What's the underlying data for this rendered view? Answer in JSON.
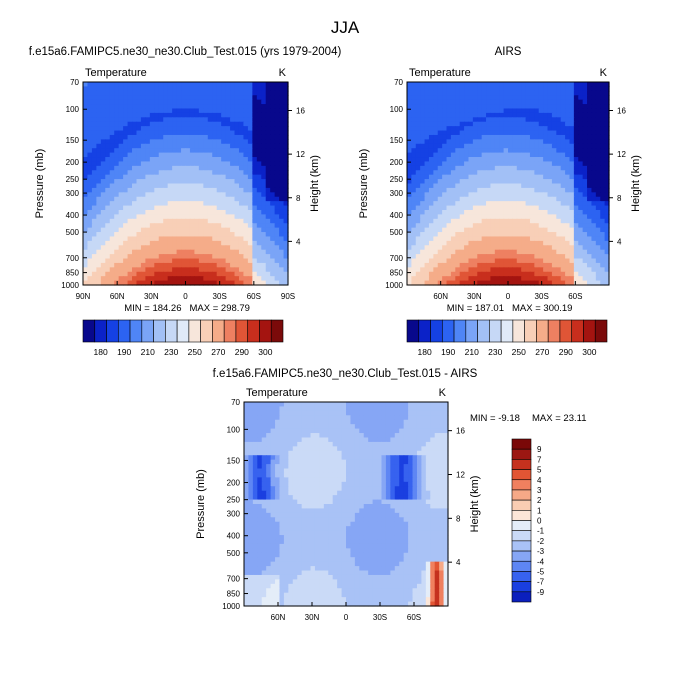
{
  "figure_title": "JJA",
  "colors": {
    "abs_scale": [
      "#08088c",
      "#0b22c8",
      "#1541e4",
      "#2c63f2",
      "#4f85f6",
      "#7aa4f7",
      "#a2c0f6",
      "#c6d8f6",
      "#e0eaf8",
      "#f7e6db",
      "#f8cfb7",
      "#f5ac89",
      "#ee8061",
      "#e05536",
      "#c82e1d",
      "#a41410",
      "#7b0a0a"
    ],
    "diff_scale": [
      "#08088c",
      "#0b1fbd",
      "#1a3fe0",
      "#3762ef",
      "#5e86f4",
      "#86a6f5",
      "#a9c2f6",
      "#cadaf7",
      "#e4edf8",
      "#fbe6d8",
      "#f9cdb3",
      "#f6a987",
      "#f0805f",
      "#e25534",
      "#c5311e",
      "#9c1712",
      "#7a0808"
    ]
  },
  "chart_data": [
    {
      "type": "contour",
      "title": "f.e15a6.FAMIPC5.ne30_ne30.Club_Test.015 (yrs 1979-2004)",
      "variable": "Temperature",
      "units": "K",
      "ylabel": "Pressure (mb)",
      "y2label": "Height (km)",
      "x_ticks": [
        "90N",
        "60N",
        "30N",
        "0",
        "30S",
        "60S",
        "90S"
      ],
      "x_range": [
        90,
        -90
      ],
      "y_ticks": [
        "70",
        "100",
        "150",
        "200",
        "250",
        "300",
        "400",
        "500",
        "700",
        "850",
        "1000"
      ],
      "y_range": [
        70,
        1000
      ],
      "height_ticks": [
        "16",
        "12",
        "8",
        "4"
      ],
      "min_label": "MIN = 184.26",
      "max_label": "MAX = 298.79",
      "min": 184.26,
      "max": 298.79,
      "color_levels": [
        "180",
        "190",
        "210",
        "230",
        "250",
        "270",
        "290",
        "300"
      ]
    },
    {
      "type": "contour",
      "title": "AIRS",
      "variable": "Temperature",
      "units": "K",
      "ylabel": "Pressure (mb)",
      "y2label": "Height (km)",
      "x_ticks": [
        "60N",
        "30N",
        "0",
        "30S",
        "60S"
      ],
      "x_range": [
        90,
        -90
      ],
      "y_ticks": [
        "70",
        "100",
        "150",
        "200",
        "250",
        "300",
        "400",
        "500",
        "700",
        "850",
        "1000"
      ],
      "y_range": [
        70,
        1000
      ],
      "height_ticks": [
        "16",
        "12",
        "8",
        "4"
      ],
      "min_label": "MIN = 187.01",
      "max_label": "MAX = 300.19",
      "min": 187.01,
      "max": 300.19,
      "color_levels": [
        "180",
        "190",
        "210",
        "230",
        "250",
        "270",
        "290",
        "300"
      ]
    },
    {
      "type": "contour",
      "title": "f.e15a6.FAMIPC5.ne30_ne30.Club_Test.015 - AIRS",
      "variable": "Temperature",
      "units": "K",
      "ylabel": "Pressure (mb)",
      "y2label": "Height (km)",
      "x_ticks": [
        "60N",
        "30N",
        "0",
        "30S",
        "60S"
      ],
      "x_range": [
        90,
        -90
      ],
      "y_ticks": [
        "70",
        "100",
        "150",
        "200",
        "250",
        "300",
        "400",
        "500",
        "700",
        "850",
        "1000"
      ],
      "y_range": [
        70,
        1000
      ],
      "height_ticks": [
        "16",
        "12",
        "8",
        "4"
      ],
      "min_label": "MIN = -9.18",
      "max_label": "MAX = 23.11",
      "min": -9.18,
      "max": 23.11,
      "color_levels": [
        "9",
        "7",
        "5",
        "4",
        "3",
        "2",
        "1",
        "0",
        "-1",
        "-2",
        "-3",
        "-4",
        "-5",
        "-7",
        "-9"
      ]
    }
  ]
}
